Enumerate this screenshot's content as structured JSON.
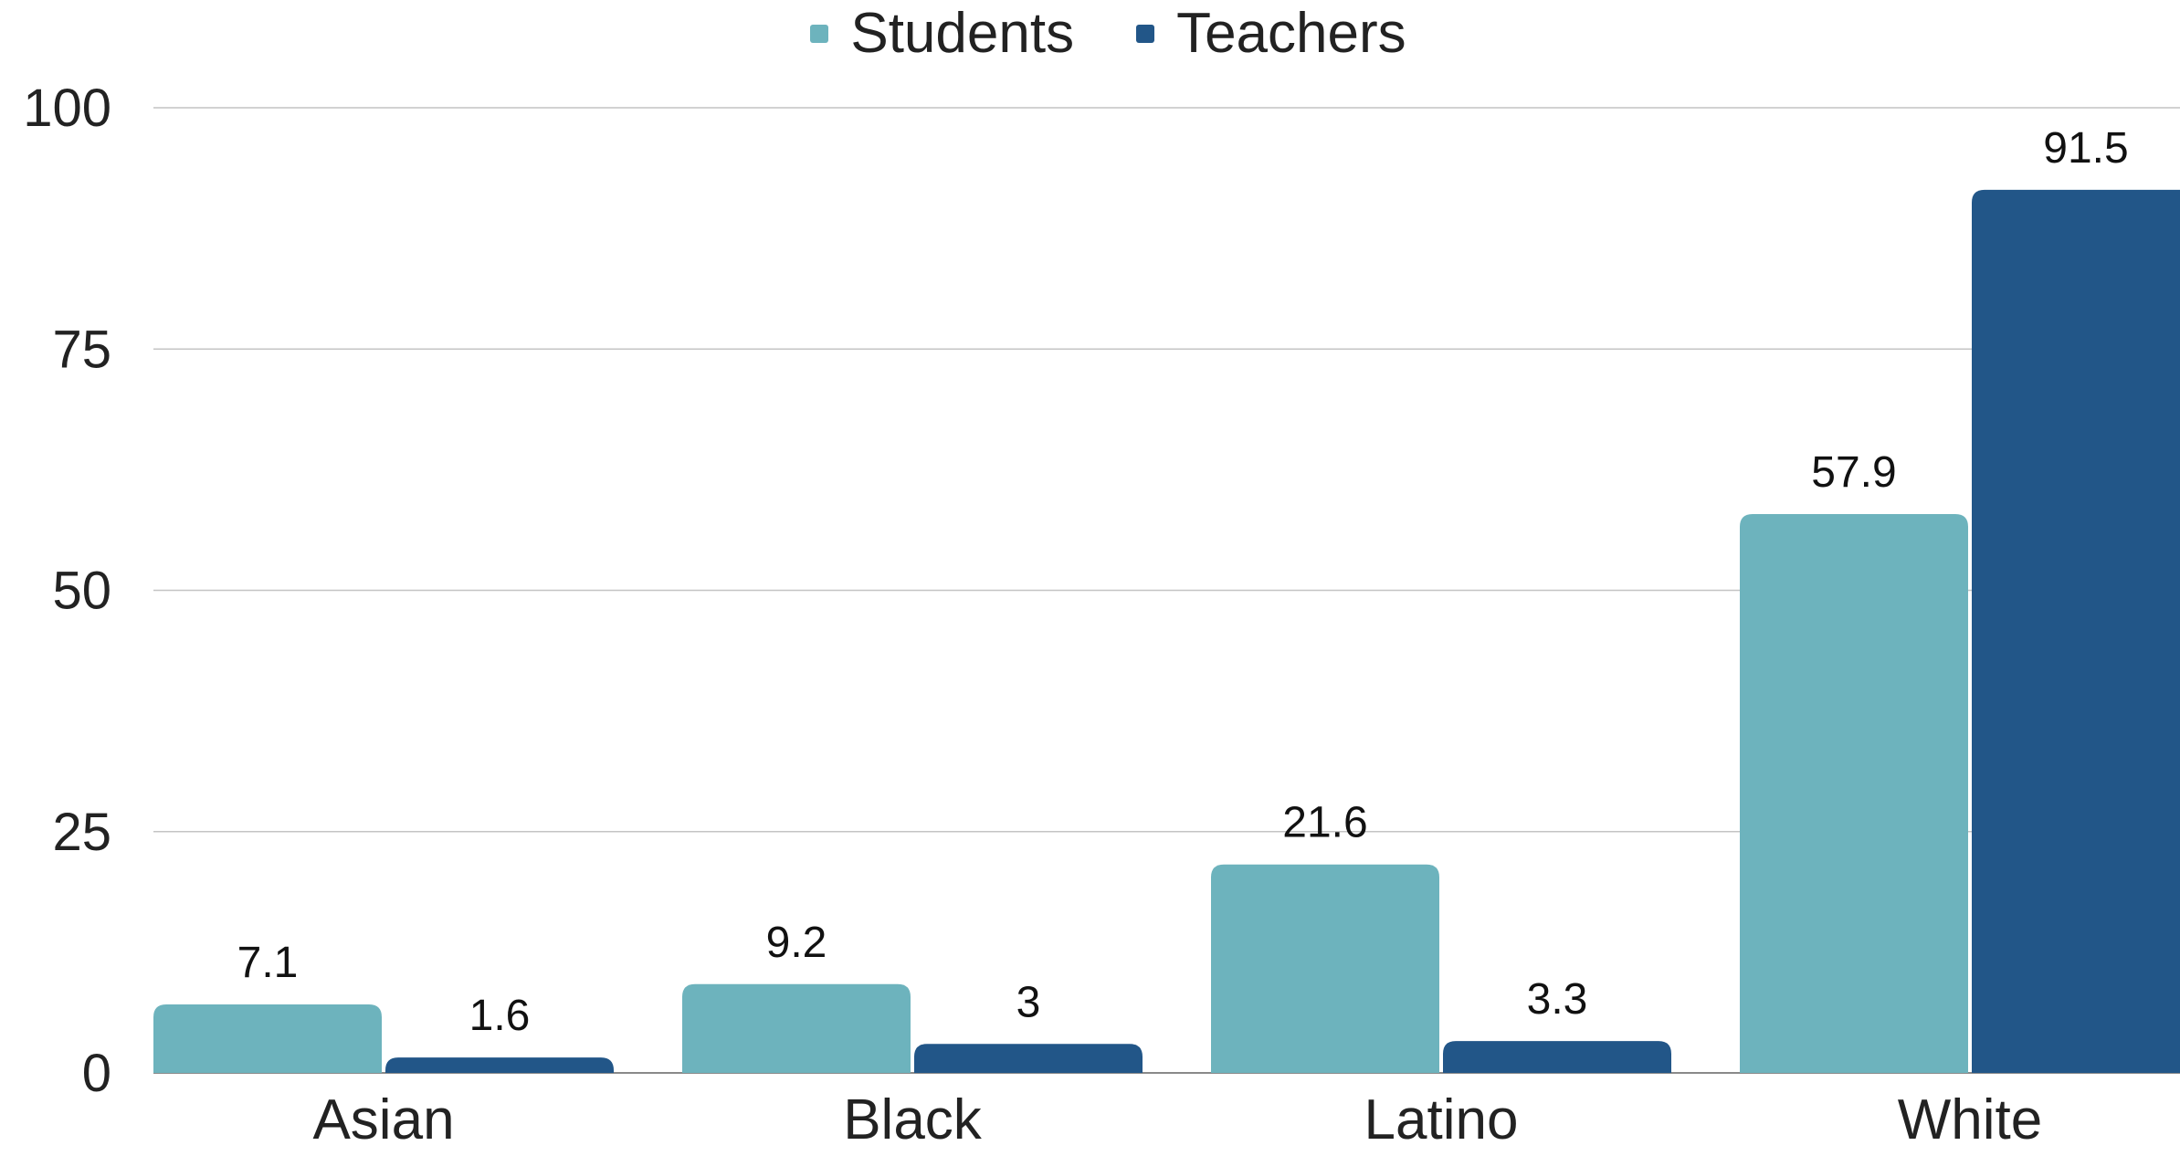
{
  "chart_data": {
    "type": "bar",
    "categories": [
      "Asian",
      "Black",
      "Latino",
      "White"
    ],
    "series": [
      {
        "name": "Students",
        "values": [
          7.1,
          9.2,
          21.6,
          57.9
        ],
        "labels": [
          "7.1",
          "9.2",
          "21.6",
          "57.9"
        ],
        "color": "#6DB3BD"
      },
      {
        "name": "Teachers",
        "values": [
          1.6,
          3,
          3.3,
          91.5
        ],
        "labels": [
          "1.6",
          "3",
          "3.3",
          "91.5"
        ],
        "color": "#225688"
      }
    ],
    "yticks": [
      "0",
      "25",
      "50",
      "75",
      "100"
    ],
    "ylim": [
      0,
      100
    ],
    "grid": true,
    "legend_position": "top-center",
    "title": "",
    "xlabel": "",
    "ylabel": ""
  }
}
